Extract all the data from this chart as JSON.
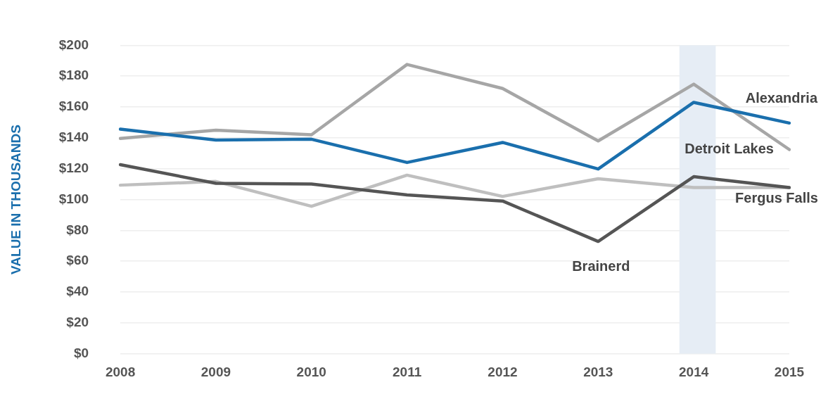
{
  "chart_data": {
    "type": "line",
    "ylabel": "VALUE IN THOUSANDS",
    "categories": [
      "2008",
      "2009",
      "2010",
      "2011",
      "2012",
      "2013",
      "2014",
      "2015"
    ],
    "series": [
      {
        "name": "Alexandria",
        "color": "#1a6fad",
        "values": [
          145.6,
          138.6,
          139.1,
          124,
          137,
          119.8,
          163,
          149.6
        ]
      },
      {
        "name": "Detroit Lakes",
        "color": "#a6a6a6",
        "values": [
          139.6,
          145,
          142,
          187.6,
          172,
          138,
          174.8,
          132.4
        ]
      },
      {
        "name": "Brainerd",
        "color": "#555555",
        "values": [
          122.6,
          110.5,
          110,
          103,
          99,
          72.8,
          114.8,
          107.8
        ]
      },
      {
        "name": "Fergus Falls",
        "color": "#bfbfbf",
        "values": [
          109.3,
          111.7,
          95.6,
          115.8,
          102,
          113.5,
          107.8,
          107.8
        ]
      }
    ],
    "ylim": [
      0,
      200
    ],
    "yticks": [
      {
        "value": 0,
        "label": "$0"
      },
      {
        "value": 20,
        "label": "$20"
      },
      {
        "value": 40,
        "label": "$40"
      },
      {
        "value": 60,
        "label": "$60"
      },
      {
        "value": 80,
        "label": "$80"
      },
      {
        "value": 100,
        "label": "$100"
      },
      {
        "value": 120,
        "label": "$120"
      },
      {
        "value": 140,
        "label": "$140"
      },
      {
        "value": 160,
        "label": "$160"
      },
      {
        "value": 180,
        "label": "$180"
      },
      {
        "value": 200,
        "label": "$200"
      }
    ],
    "bands": [
      {
        "axis": "x",
        "from": "2014",
        "to": "2014",
        "color": "#e6edf5"
      }
    ],
    "grid": "y",
    "legend": false,
    "marker": "none",
    "line_style": "solid"
  }
}
